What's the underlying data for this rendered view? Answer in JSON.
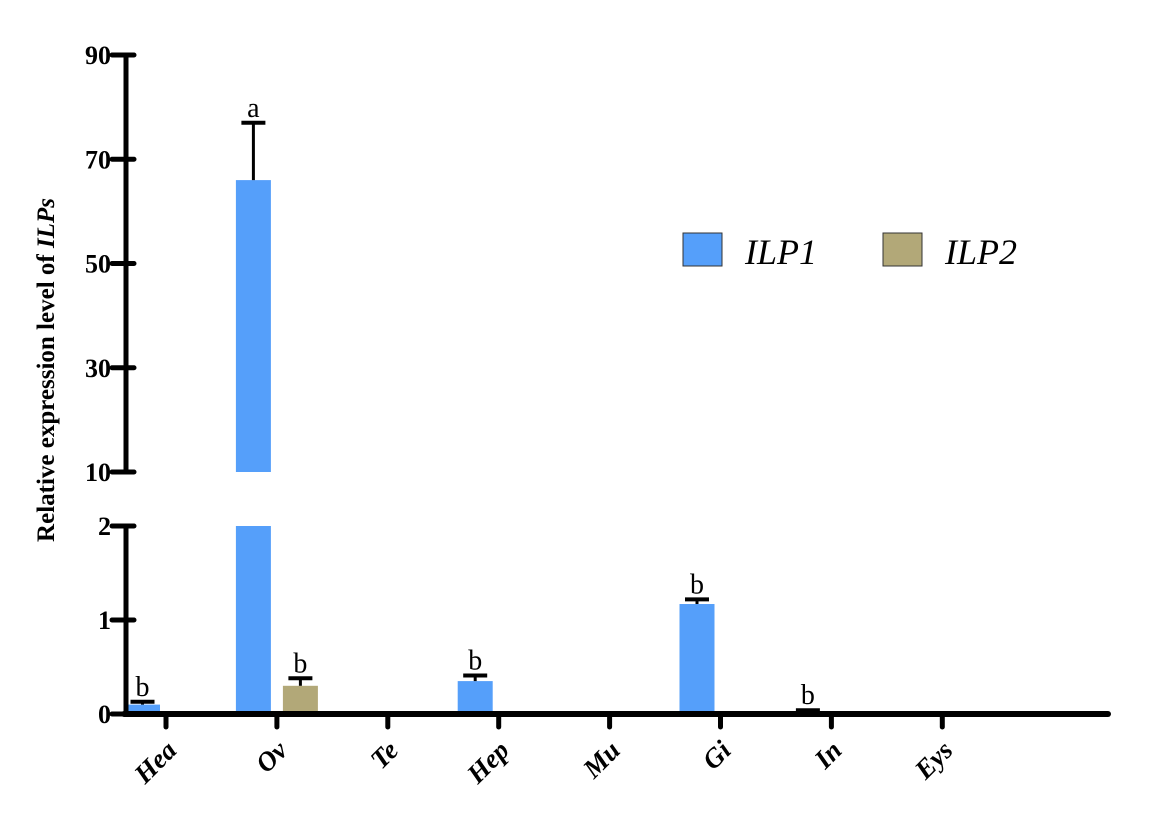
{
  "chart_data": {
    "type": "bar",
    "ylabel_prefix": "Relative expression level of ",
    "ylabel_italic": "ILPs",
    "xlabel": "",
    "categories": [
      "Hea",
      "Ov",
      "Te",
      "Hep",
      "Mu",
      "Gi",
      "In",
      "Eys"
    ],
    "y_axis": {
      "broken": true,
      "lower_segment": {
        "range": [
          0,
          2
        ],
        "ticks": [
          0,
          1,
          2
        ]
      },
      "upper_segment": {
        "range": [
          10,
          90
        ],
        "ticks": [
          10,
          30,
          50,
          70,
          90
        ]
      }
    },
    "series": [
      {
        "name": "ILP1",
        "color": "#559ffa",
        "values": [
          0.1,
          66,
          0,
          0.35,
          0,
          1.17,
          0.02,
          0
        ],
        "error_upper": [
          0.13,
          77,
          null,
          0.41,
          null,
          1.22,
          0.04,
          null
        ],
        "significance": [
          "b",
          "a",
          "",
          "b",
          "",
          "b",
          "b",
          ""
        ]
      },
      {
        "name": "ILP2",
        "color": "#b2a878",
        "values": [
          0,
          0.3,
          0,
          0,
          0,
          0,
          0,
          0
        ],
        "error_upper": [
          null,
          0.38,
          null,
          null,
          null,
          null,
          null,
          null
        ],
        "significance": [
          "",
          "b",
          "",
          "",
          "",
          "",
          "",
          ""
        ]
      }
    ],
    "legend_position": "top-right",
    "grid": false
  }
}
